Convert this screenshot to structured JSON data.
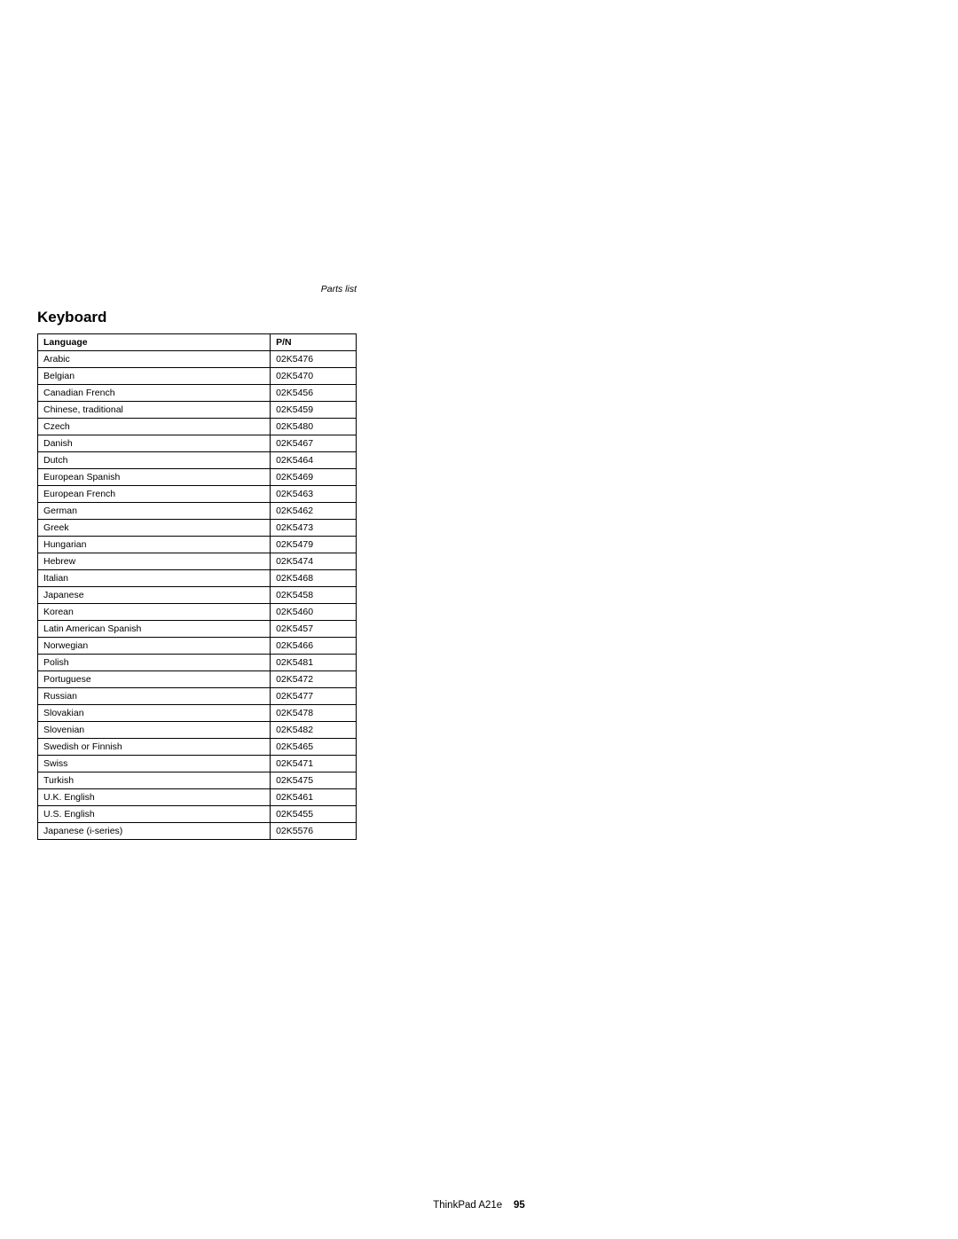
{
  "header": {
    "parts_list": "Parts list"
  },
  "section": {
    "title": "Keyboard"
  },
  "table": {
    "columns": [
      "Language",
      "P/N"
    ],
    "rows": [
      [
        "Arabic",
        "02K5476"
      ],
      [
        "Belgian",
        "02K5470"
      ],
      [
        "Canadian French",
        "02K5456"
      ],
      [
        "Chinese, traditional",
        "02K5459"
      ],
      [
        "Czech",
        "02K5480"
      ],
      [
        "Danish",
        "02K5467"
      ],
      [
        "Dutch",
        "02K5464"
      ],
      [
        "European Spanish",
        "02K5469"
      ],
      [
        "European French",
        "02K5463"
      ],
      [
        "German",
        "02K5462"
      ],
      [
        "Greek",
        "02K5473"
      ],
      [
        "Hungarian",
        "02K5479"
      ],
      [
        "Hebrew",
        "02K5474"
      ],
      [
        "Italian",
        "02K5468"
      ],
      [
        "Japanese",
        "02K5458"
      ],
      [
        "Korean",
        "02K5460"
      ],
      [
        "Latin American Spanish",
        "02K5457"
      ],
      [
        "Norwegian",
        "02K5466"
      ],
      [
        "Polish",
        "02K5481"
      ],
      [
        "Portuguese",
        "02K5472"
      ],
      [
        "Russian",
        "02K5477"
      ],
      [
        "Slovakian",
        "02K5478"
      ],
      [
        "Slovenian",
        "02K5482"
      ],
      [
        "Swedish or Finnish",
        "02K5465"
      ],
      [
        "Swiss",
        "02K5471"
      ],
      [
        "Turkish",
        "02K5475"
      ],
      [
        "U.K. English",
        "02K5461"
      ],
      [
        "U.S. English",
        "02K5455"
      ],
      [
        "Japanese (i-series)",
        "02K5576"
      ]
    ]
  },
  "footer": {
    "product": "ThinkPad A21e",
    "page_number": "95"
  }
}
